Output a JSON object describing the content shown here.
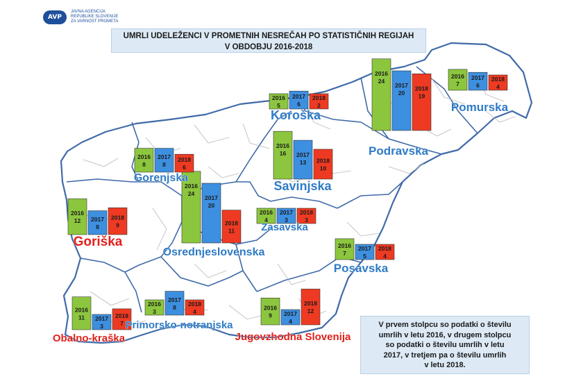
{
  "logo": {
    "mark": "AVP",
    "lines": [
      "JAVNA AGENCIJA",
      "REPUBLIKE SLOVENIJE",
      "ZA VARNOST PROMETA"
    ]
  },
  "title": {
    "line1": "UMRLI UDELEŽENCI V PROMETNIH NESREČAH PO STATISTIČNIH REGIJAH",
    "line2": "V OBDOBJU 2016-2018"
  },
  "note": {
    "lines": [
      "V prvem stolpcu so podatki o številu",
      "umrlih v letu 2016, v drugem stolpcu",
      "so podatki o številu umrlih v letu",
      "2017, v tretjem pa o številu umrlih",
      "v letu 2018."
    ]
  },
  "colors": {
    "2016": "#8cc63e",
    "2017": "#3d8fe0",
    "2018": "#ee3a22",
    "label_blue": "#2e7bc6",
    "label_red": "#e0211b"
  },
  "chart_data": {
    "type": "bar",
    "title": "UMRLI UDELEŽENCI V PROMETNIH NESREČAH PO STATISTIČNIH REGIJAH V OBDOBJU 2016-2018",
    "series_years": [
      "2016",
      "2017",
      "2018"
    ],
    "regions": [
      {
        "name": "Pomurska",
        "values": [
          7,
          6,
          4
        ],
        "label_color": "blue"
      },
      {
        "name": "Podravska",
        "values": [
          24,
          20,
          19
        ],
        "label_color": "blue"
      },
      {
        "name": "Koroška",
        "values": [
          5,
          6,
          2
        ],
        "label_color": "blue"
      },
      {
        "name": "Savinjska",
        "values": [
          16,
          13,
          10
        ],
        "label_color": "blue"
      },
      {
        "name": "Zasavska",
        "values": [
          4,
          3,
          3
        ],
        "label_color": "blue"
      },
      {
        "name": "Posavska",
        "values": [
          7,
          5,
          4
        ],
        "label_color": "blue"
      },
      {
        "name": "Jugovzhodna Slovenija",
        "values": [
          9,
          4,
          12
        ],
        "label_color": "red"
      },
      {
        "name": "Osrednjeslovenska",
        "values": [
          24,
          20,
          11
        ],
        "label_color": "blue"
      },
      {
        "name": "Gorenjska",
        "values": [
          8,
          8,
          6
        ],
        "label_color": "blue"
      },
      {
        "name": "Primorsko-notranjska",
        "values": [
          3,
          8,
          4
        ],
        "label_color": "blue"
      },
      {
        "name": "Goriška",
        "values": [
          12,
          8,
          9
        ],
        "label_color": "red"
      },
      {
        "name": "Obalno-kraška",
        "values": [
          11,
          3,
          7
        ],
        "label_color": "red"
      }
    ]
  }
}
